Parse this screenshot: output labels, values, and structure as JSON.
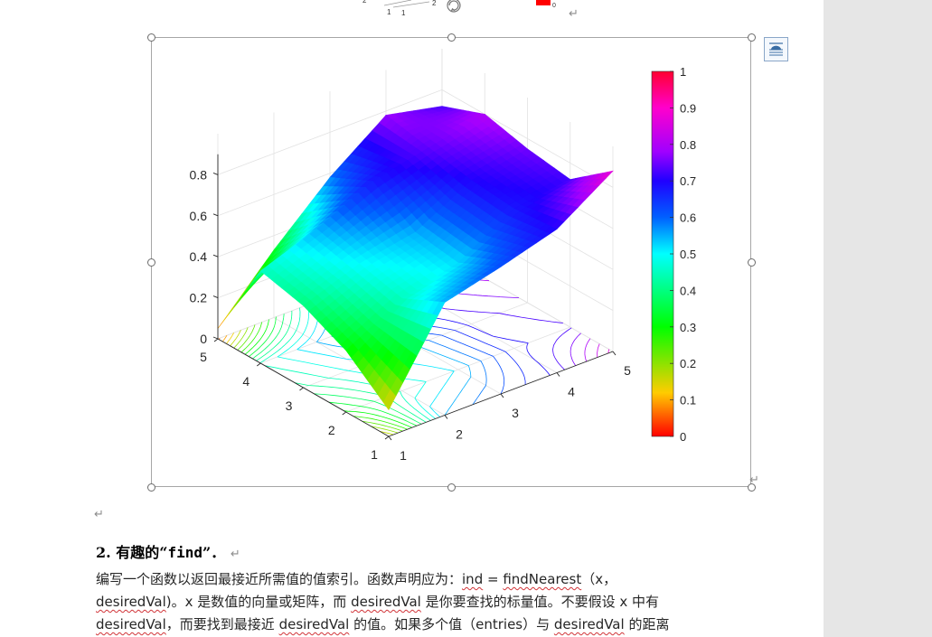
{
  "figure": {
    "chart_data": {
      "type": "surface",
      "x": [
        1,
        2,
        3,
        4,
        5
      ],
      "y": [
        1,
        2,
        3,
        4,
        5
      ],
      "z": [
        [
          0.13,
          0.55,
          0.62,
          0.7,
          0.88
        ],
        [
          0.3,
          0.45,
          0.52,
          0.68,
          0.72
        ],
        [
          0.4,
          0.5,
          0.55,
          0.7,
          0.75
        ],
        [
          0.45,
          0.55,
          0.68,
          0.74,
          0.8
        ],
        [
          0.05,
          0.33,
          0.58,
          0.78,
          0.72
        ]
      ],
      "z_ticks": [
        "0",
        "0.2",
        "0.4",
        "0.6",
        "0.8"
      ],
      "x_ticks": [
        "1",
        "2",
        "3",
        "4",
        "5"
      ],
      "y_ticks": [
        "1",
        "2",
        "3",
        "4",
        "5"
      ],
      "colorbar": {
        "ticks": [
          "0",
          "0.1",
          "0.2",
          "0.3",
          "0.4",
          "0.5",
          "0.6",
          "0.7",
          "0.8",
          "0.9",
          "1"
        ],
        "colormap": "hsv-reversed",
        "colors": [
          "#ff0000",
          "#ffdd00",
          "#00ff00",
          "#00ffff",
          "#0040ff",
          "#8000ff",
          "#ff00cc",
          "#ff0040"
        ]
      },
      "contour_projection": true,
      "grid": true
    },
    "top_fragment_ticks": [
      "2",
      "1",
      "1",
      "2",
      "0"
    ]
  },
  "section": {
    "heading_prefix": "2. 有趣的“",
    "heading_code": "find",
    "heading_suffix": "”．",
    "line1": [
      {
        "t": "编写一个函数以返回最接近所需值的值索引。函数声明应为：",
        "sq": false
      },
      {
        "t": "ind",
        "sq": true
      },
      {
        "t": " = ",
        "sq": false
      },
      {
        "t": "findNearest",
        "sq": true
      },
      {
        "t": "（x，",
        "sq": false
      }
    ],
    "line2": [
      {
        "t": "desiredVal",
        "sq": true
      },
      {
        "t": ")。x 是数值的向量或矩阵，而 ",
        "sq": false
      },
      {
        "t": "desiredVal",
        "sq": true
      },
      {
        "t": " 是你要查找的标量值。不要假设 x 中有",
        "sq": false
      }
    ],
    "line3": [
      {
        "t": "desiredVal",
        "sq": true
      },
      {
        "t": "，而要找到最接近 ",
        "sq": false
      },
      {
        "t": "desiredVal",
        "sq": true
      },
      {
        "t": " 的值。如果多个值（entries）与 ",
        "sq": false
      },
      {
        "t": "desiredVal",
        "sq": true
      },
      {
        "t": " 的距离",
        "sq": false
      }
    ]
  },
  "marks": {
    "return_symbol": "↵"
  }
}
